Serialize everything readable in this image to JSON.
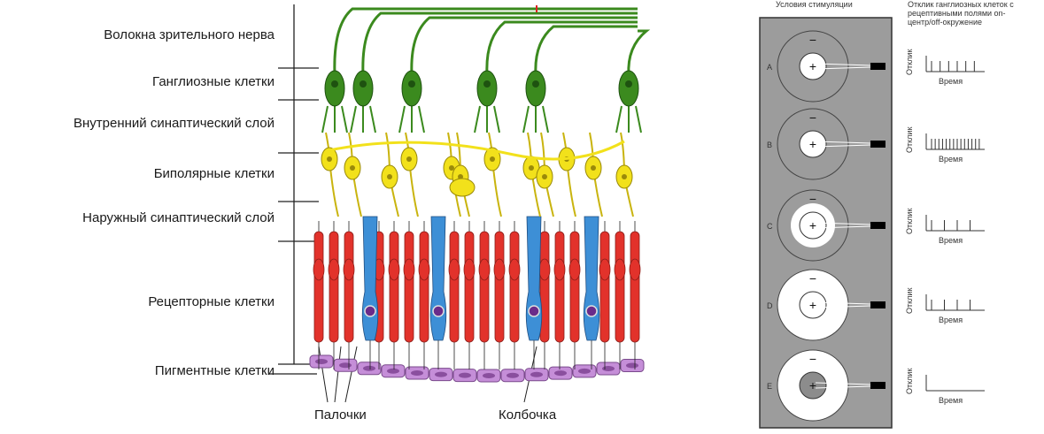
{
  "retina": {
    "layers": [
      {
        "key": "fibers",
        "label": "Волокна зрительного нерва"
      },
      {
        "key": "ganglion",
        "label": "Ганглиозные клетки"
      },
      {
        "key": "inner_synaptic",
        "label": "Внутренний синаптический слой"
      },
      {
        "key": "bipolar",
        "label": "Биполярные клетки"
      },
      {
        "key": "outer_synaptic",
        "label": "Наружный синаптический слой"
      },
      {
        "key": "receptor",
        "label": "Рецепторные клетки"
      },
      {
        "key": "pigment",
        "label": "Пигментные клетки"
      }
    ],
    "rods_label": "Палочки",
    "cone_label": "Колбочка",
    "colors": {
      "ganglion": "#3b8a1e",
      "bipolar": "#f2e11b",
      "rod": "#e2322b",
      "cone": "#3d8fd6",
      "pigment": "#c58ed8"
    }
  },
  "stimulation": {
    "header_conditions": "Условия стимуляции",
    "header_response": "Отклик ганглиозных клеток с рецептивными полями on-центр/off-окружение",
    "y_label": "Отклик",
    "x_label": "Время",
    "center_sign": "+",
    "surround_sign": "−",
    "rows": [
      {
        "id": "A",
        "spikes": 6
      },
      {
        "id": "B",
        "spikes": 14
      },
      {
        "id": "C",
        "spikes": 4
      },
      {
        "id": "D",
        "spikes": 4
      },
      {
        "id": "E",
        "spikes": 0
      }
    ]
  }
}
